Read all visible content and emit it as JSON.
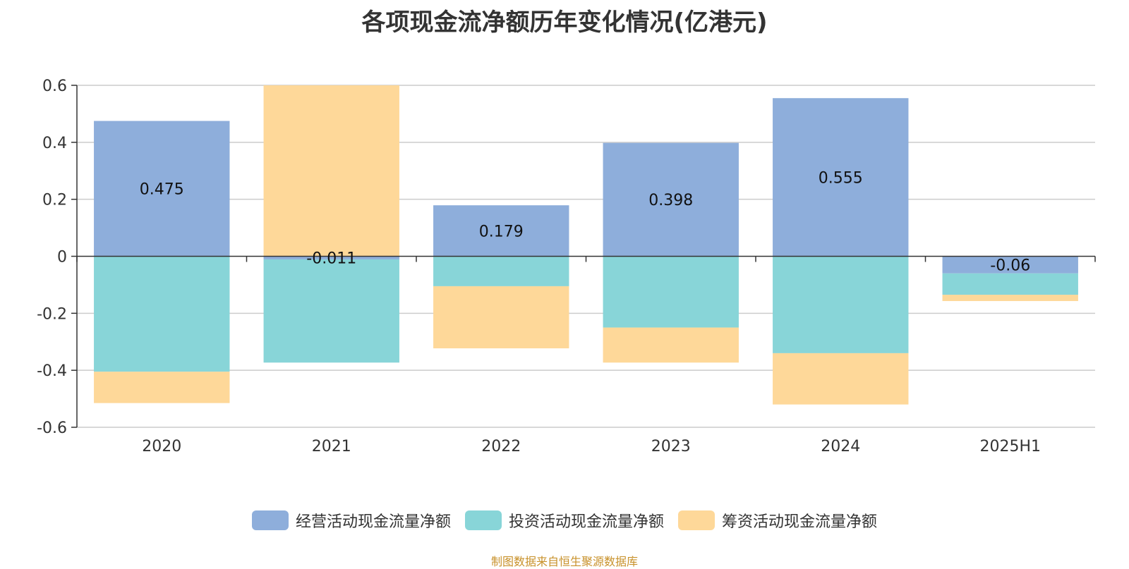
{
  "chart_data": {
    "type": "bar",
    "stacked": true,
    "title": "各项现金流净额历年变化情况(亿港元)",
    "categories": [
      "2020",
      "2021",
      "2022",
      "2023",
      "2024",
      "2025H1"
    ],
    "ylim": [
      -0.6,
      0.6
    ],
    "yticks": [
      0.6,
      0.4,
      0.2,
      0,
      -0.2,
      -0.4,
      -0.6
    ],
    "ytick_labels": [
      "0.6",
      "0.4",
      "0.2",
      "0",
      "-0.2",
      "-0.4",
      "-0.6"
    ],
    "grid": true,
    "legend_position": "bottom",
    "series": [
      {
        "name": "经营活动现金流量净额",
        "color": "#8eaedb",
        "values": [
          0.475,
          -0.011,
          0.179,
          0.398,
          0.555,
          -0.06
        ],
        "labels": [
          "0.475",
          "-0.011",
          "0.179",
          "0.398",
          "0.555",
          "-0.06"
        ]
      },
      {
        "name": "投资活动现金流量净额",
        "color": "#88d5d8",
        "values": [
          -0.405,
          -0.362,
          -0.105,
          -0.25,
          -0.34,
          -0.075
        ]
      },
      {
        "name": "筹资活动现金流量净额",
        "color": "#fed899",
        "values": [
          -0.11,
          0.6,
          -0.218,
          -0.123,
          -0.18,
          -0.022
        ]
      }
    ]
  },
  "source_note": "制图数据来自恒生聚源数据库"
}
